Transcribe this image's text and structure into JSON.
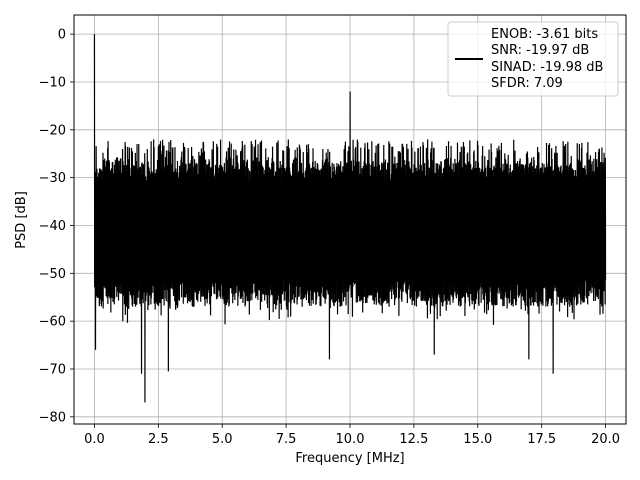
{
  "chart_data": {
    "type": "line",
    "xlabel": "Frequency [MHz]",
    "ylabel": "PSD [dB]",
    "xlim": [
      -0.8,
      20.8
    ],
    "ylim": [
      -81.5,
      4
    ],
    "xticks": [
      0.0,
      2.5,
      5.0,
      7.5,
      10.0,
      12.5,
      15.0,
      17.5,
      20.0
    ],
    "xtick_labels": [
      "0.0",
      "2.5",
      "5.0",
      "7.5",
      "10.0",
      "12.5",
      "15.0",
      "17.5",
      "20.0"
    ],
    "yticks": [
      0,
      -10,
      -20,
      -30,
      -40,
      -50,
      -60,
      -70,
      -80
    ],
    "ytick_labels": [
      "0",
      "−10",
      "−20",
      "−30",
      "−40",
      "−50",
      "−60",
      "−70",
      "−80"
    ],
    "grid": true,
    "legend_position": "top-right",
    "line_color": "#000000",
    "legend_lines": [
      "ENOB: -3.61 bits",
      "SNR: -19.97 dB",
      "SINAD: -19.98 dB",
      "SFDR: 7.09"
    ],
    "series": [
      {
        "x_range": [
          0.0,
          20.0
        ],
        "noise_floor_top": -22,
        "noise_floor_bottom": -57,
        "peaks": [
          {
            "x": 0.0,
            "y": 0.0
          },
          {
            "x": 10.0,
            "y": -12.0
          }
        ],
        "deep_dips": [
          {
            "x": 1.97,
            "y": -77.0
          },
          {
            "x": 1.85,
            "y": -71.0
          },
          {
            "x": 2.9,
            "y": -70.5
          },
          {
            "x": 17.95,
            "y": -71.0
          },
          {
            "x": 0.05,
            "y": -66.0
          },
          {
            "x": 9.2,
            "y": -68.0
          },
          {
            "x": 13.3,
            "y": -67.0
          },
          {
            "x": 17.0,
            "y": -68.0
          }
        ]
      }
    ]
  }
}
